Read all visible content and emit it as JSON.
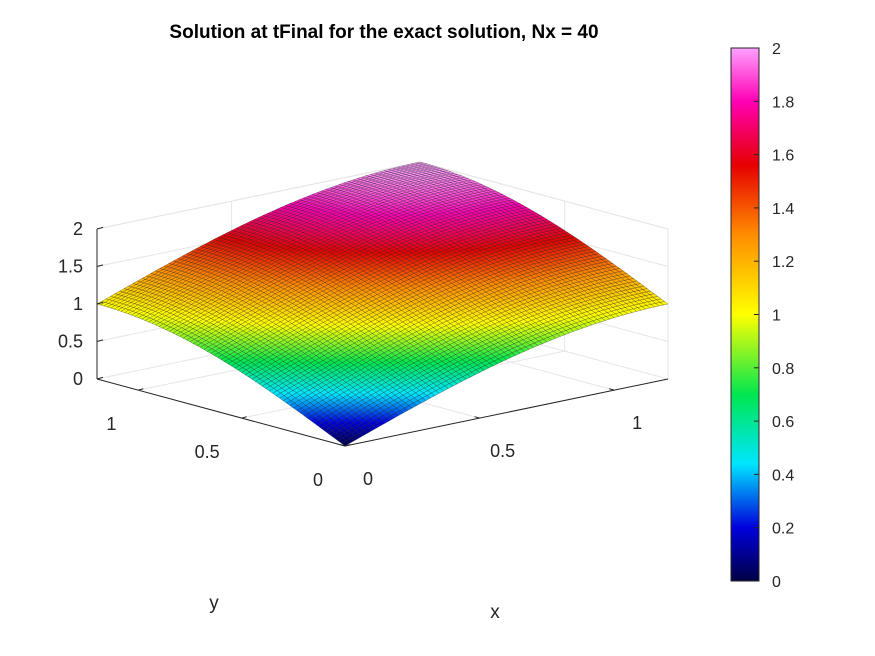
{
  "chart_data": {
    "type": "surface",
    "title": "Solution at tFinal for the exact solution, Nx = 40",
    "xlabel": "x",
    "ylabel": "y",
    "zlabel": "",
    "xlim": [
      0,
      1.2
    ],
    "ylim": [
      0,
      1.2
    ],
    "zlim": [
      0,
      2
    ],
    "xticks": [
      "0",
      "0.5",
      "1"
    ],
    "yticks": [
      "0",
      "0.5",
      "1"
    ],
    "zticks": [
      "0",
      "0.5",
      "1",
      "1.5",
      "2"
    ],
    "grid": true,
    "colormap": "hsv-like (navy → blue → cyan → green → yellow → orange → red → magenta → pink)",
    "colorbar": {
      "position": "right",
      "range": [
        0,
        2
      ],
      "ticks": [
        "0",
        "0.2",
        "0.4",
        "0.6",
        "0.8",
        "1",
        "1.2",
        "1.4",
        "1.6",
        "1.8",
        "2"
      ]
    },
    "surface_samples": {
      "description_free_values": true,
      "corners": [
        {
          "x": 0,
          "y": 0,
          "z": 0
        },
        {
          "x": 1.2,
          "y": 0,
          "z": 0.93
        },
        {
          "x": 0,
          "y": 1.2,
          "z": 0.93
        },
        {
          "x": 1.2,
          "y": 1.2,
          "z": 1.86
        }
      ]
    }
  }
}
